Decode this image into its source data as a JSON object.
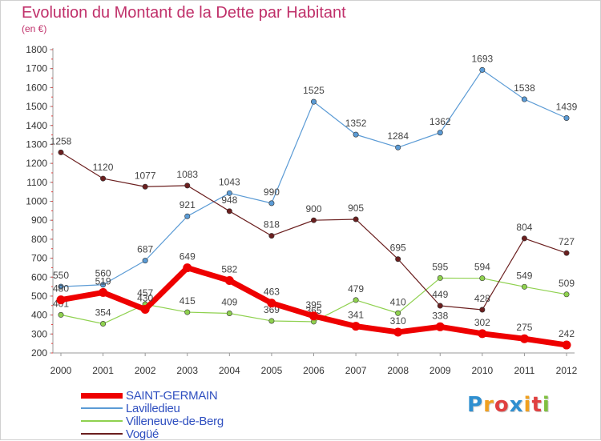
{
  "header": {
    "title": "Evolution du Montant de la Dette par Habitant",
    "subtitle": "(en €)"
  },
  "logo": {
    "text": "Proxiti",
    "letters": [
      {
        "ch": "P",
        "color": "#2f8fd0"
      },
      {
        "ch": "r",
        "color": "#f0a020"
      },
      {
        "ch": "o",
        "color": "#e04040"
      },
      {
        "ch": "x",
        "color": "#2f8fd0"
      },
      {
        "ch": "i",
        "color": "#f0a020"
      },
      {
        "ch": "t",
        "color": "#e04040"
      },
      {
        "ch": "i",
        "color": "#80c040"
      }
    ]
  },
  "chart_data": {
    "type": "line",
    "title": "Evolution du Montant de la Dette par Habitant",
    "subtitle": "(en €)",
    "x": [
      "2000",
      "2001",
      "2002",
      "2003",
      "2004",
      "2005",
      "2006",
      "2007",
      "2008",
      "2009",
      "2010",
      "2011",
      "2012"
    ],
    "ylim": [
      200,
      1800
    ],
    "yticks": [
      200,
      300,
      400,
      500,
      600,
      700,
      800,
      900,
      1000,
      1100,
      1200,
      1300,
      1400,
      1500,
      1600,
      1700,
      1800
    ],
    "grid": false,
    "legend_position": "bottom-left",
    "series": [
      {
        "name": "Lavilledieu",
        "color": "#5b9bd5",
        "values": [
          550,
          560,
          687,
          921,
          1043,
          990,
          1525,
          1352,
          1284,
          1362,
          1693,
          1538,
          1439
        ]
      },
      {
        "name": "Villeneuve-de-Berg",
        "color": "#8fd14f",
        "values": [
          401,
          354,
          457,
          415,
          409,
          369,
          365,
          479,
          410,
          595,
          594,
          549,
          509
        ]
      },
      {
        "name": "Vogüé",
        "color": "#6b1f1f",
        "values": [
          1258,
          1120,
          1077,
          1083,
          948,
          818,
          900,
          905,
          695,
          449,
          428,
          804,
          727
        ]
      },
      {
        "name": "SAINT-GERMAIN",
        "color": "#ee0000",
        "values": [
          480,
          519,
          430,
          649,
          582,
          463,
          395,
          341,
          310,
          338,
          302,
          275,
          242
        ]
      }
    ],
    "legend_order": [
      "SAINT-GERMAIN",
      "Lavilledieu",
      "Villeneuve-de-Berg",
      "Vogüé"
    ]
  }
}
